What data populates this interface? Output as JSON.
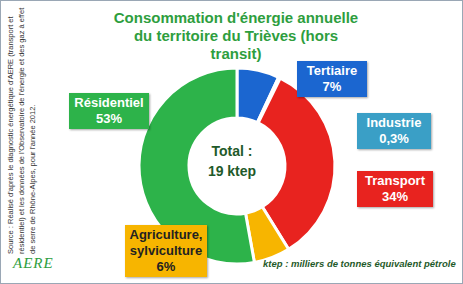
{
  "chart_data": {
    "type": "donut",
    "title": "Consommation d'énergie annuelle du territoire du Trièves (hors transit)",
    "categories": [
      "Tertiaire",
      "Industrie",
      "Transport",
      "Agriculture, sylviculture",
      "Résidentiel"
    ],
    "values": [
      7,
      0.3,
      34,
      6,
      53
    ],
    "value_labels": [
      "7%",
      "0,3%",
      "34%",
      "6%",
      "53%"
    ],
    "colors": [
      "#1b66d0",
      "#3a9fc6",
      "#e8231f",
      "#f7b500",
      "#2db34a"
    ],
    "data_labels": true,
    "center_text": [
      "Total :",
      "19 ktep"
    ],
    "note": "ktep : milliers de tonnes équivalent pétrole",
    "source": "Source : Réalisé d'après le diagnostic énergétique d'AERE (transport et résidentiel) et les données de l'Observatoire de l'énergie et des gaz à effet de serre de Rhône-Alpes, pour l'année 2012.",
    "logo": "AERE"
  }
}
